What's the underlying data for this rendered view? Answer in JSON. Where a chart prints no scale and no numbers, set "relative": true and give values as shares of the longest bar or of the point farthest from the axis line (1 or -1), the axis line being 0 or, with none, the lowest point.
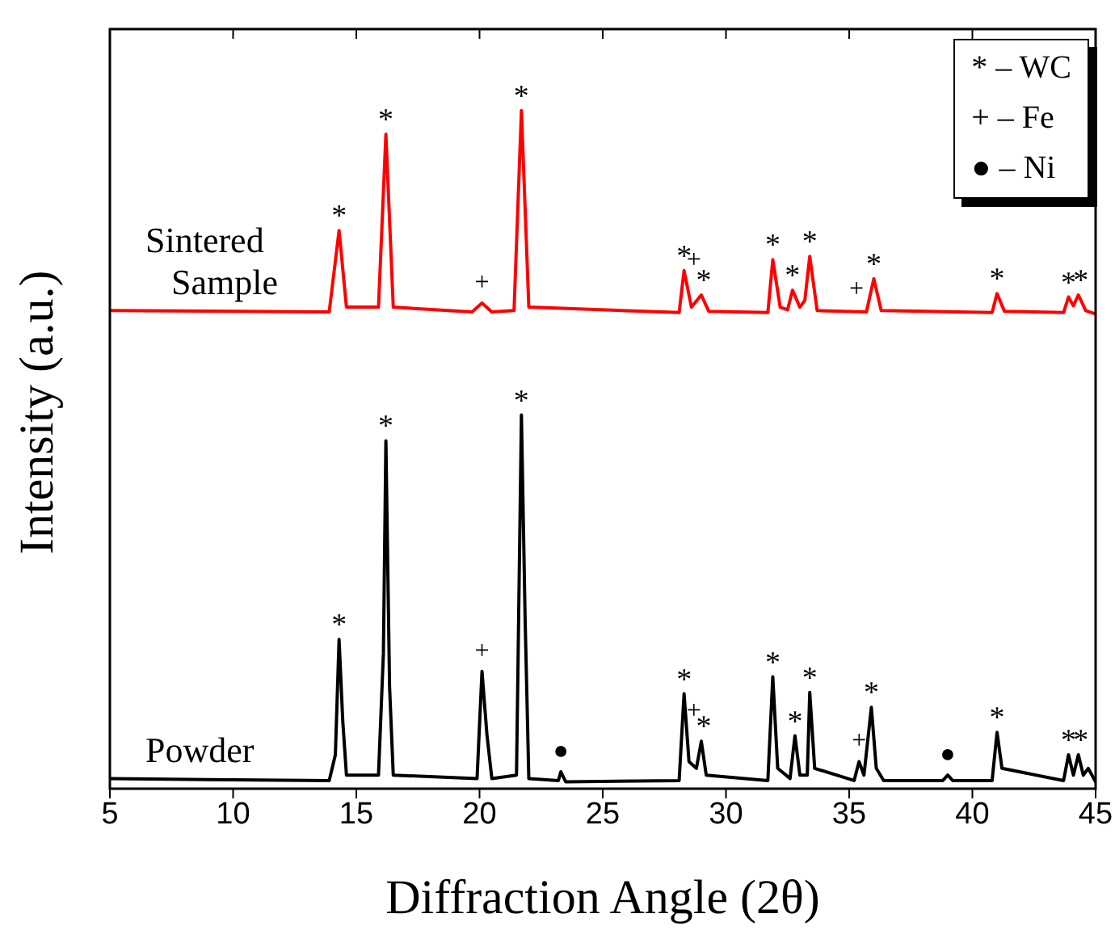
{
  "chart_data": {
    "type": "line",
    "relative": true,
    "xlabel": "Diffraction Angle (2θ)",
    "ylabel": "Intensity (a.u.)",
    "xlim": [
      5,
      45
    ],
    "xticks": [
      5,
      10,
      15,
      20,
      25,
      30,
      35,
      40,
      45
    ],
    "legend": false,
    "grid": false,
    "marker": "none",
    "line_style": "solid",
    "series": [
      {
        "name": "Sintered Sample",
        "color": "#ff0000",
        "x": [
          5,
          13.9,
          14.3,
          14.6,
          15.9,
          16.2,
          16.5,
          19.7,
          20.1,
          20.5,
          21.4,
          21.7,
          22.0,
          28.1,
          28.3,
          28.6,
          29.0,
          29.3,
          31.7,
          31.9,
          32.2,
          32.5,
          32.7,
          33.0,
          33.2,
          33.4,
          33.7,
          35.7,
          36.0,
          36.3,
          40.8,
          41.0,
          41.3,
          43.7,
          43.9,
          44.1,
          44.3,
          44.6,
          45
        ],
        "values": [
          0.705,
          0.703,
          0.823,
          0.71,
          0.71,
          0.965,
          0.71,
          0.703,
          0.716,
          0.703,
          0.705,
          1.0,
          0.71,
          0.702,
          0.764,
          0.71,
          0.728,
          0.704,
          0.702,
          0.78,
          0.71,
          0.706,
          0.735,
          0.71,
          0.72,
          0.785,
          0.705,
          0.703,
          0.752,
          0.705,
          0.702,
          0.73,
          0.704,
          0.702,
          0.725,
          0.712,
          0.728,
          0.705,
          0.7
        ]
      },
      {
        "name": "Powder",
        "color": "#000000",
        "x": [
          5,
          10,
          13.9,
          14.15,
          14.3,
          14.45,
          14.6,
          15.9,
          16.1,
          16.2,
          16.35,
          16.5,
          19.9,
          20.1,
          20.3,
          20.5,
          21.5,
          21.7,
          21.85,
          22.0,
          23.2,
          23.3,
          23.5,
          28.1,
          28.3,
          28.5,
          28.8,
          29.0,
          29.2,
          31.7,
          31.9,
          32.1,
          32.6,
          32.8,
          33.0,
          33.3,
          33.4,
          33.6,
          35.2,
          35.4,
          35.6,
          35.9,
          36.1,
          36.4,
          38.8,
          39.0,
          39.2,
          40.8,
          41.0,
          41.2,
          43.7,
          43.9,
          44.1,
          44.3,
          44.5,
          44.7,
          45
        ],
        "values": [
          0.015,
          0.013,
          0.012,
          0.05,
          0.22,
          0.1,
          0.02,
          0.02,
          0.2,
          0.513,
          0.15,
          0.02,
          0.015,
          0.173,
          0.08,
          0.015,
          0.02,
          0.551,
          0.25,
          0.015,
          0.012,
          0.025,
          0.01,
          0.012,
          0.14,
          0.04,
          0.03,
          0.07,
          0.02,
          0.012,
          0.165,
          0.03,
          0.015,
          0.078,
          0.02,
          0.02,
          0.142,
          0.03,
          0.012,
          0.04,
          0.02,
          0.12,
          0.03,
          0.012,
          0.012,
          0.02,
          0.012,
          0.012,
          0.083,
          0.03,
          0.012,
          0.05,
          0.02,
          0.05,
          0.02,
          0.03,
          0.01
        ]
      }
    ],
    "annotations": [
      "* – WC",
      "+ – Fe",
      "● – Ni",
      {
        "text": "*",
        "x": 14.3,
        "y": 0.823
      },
      {
        "text": "*",
        "x": 16.2,
        "y": 0.965
      },
      {
        "text": "+",
        "x": 20.1,
        "y": 0.716
      },
      {
        "text": "*",
        "x": 21.7,
        "y": 1.0
      },
      {
        "text": "*",
        "x": 28.3,
        "y": 0.764
      },
      {
        "text": "+",
        "x": 28.7,
        "y": 0.75
      },
      {
        "text": "*",
        "x": 29.1,
        "y": 0.728
      },
      {
        "text": "*",
        "x": 31.9,
        "y": 0.78
      },
      {
        "text": "*",
        "x": 32.7,
        "y": 0.735
      },
      {
        "text": "*",
        "x": 33.4,
        "y": 0.785
      },
      {
        "text": "+",
        "x": 35.3,
        "y": 0.706
      },
      {
        "text": "*",
        "x": 36.0,
        "y": 0.752
      },
      {
        "text": "*",
        "x": 41.0,
        "y": 0.73
      },
      {
        "text": "*",
        "x": 43.9,
        "y": 0.725
      },
      {
        "text": "*",
        "x": 44.4,
        "y": 0.728
      },
      {
        "text": "*",
        "x": 14.3,
        "y": 0.22
      },
      {
        "text": "*",
        "x": 16.2,
        "y": 0.513
      },
      {
        "text": "+",
        "x": 20.1,
        "y": 0.173
      },
      {
        "text": "*",
        "x": 21.7,
        "y": 0.551
      },
      {
        "text": "●",
        "x": 23.3,
        "y": 0.025
      },
      {
        "text": "*",
        "x": 28.3,
        "y": 0.14
      },
      {
        "text": "+",
        "x": 28.7,
        "y": 0.085
      },
      {
        "text": "*",
        "x": 29.1,
        "y": 0.07
      },
      {
        "text": "*",
        "x": 31.9,
        "y": 0.165
      },
      {
        "text": "*",
        "x": 32.8,
        "y": 0.078
      },
      {
        "text": "*",
        "x": 33.4,
        "y": 0.142
      },
      {
        "text": "+",
        "x": 35.4,
        "y": 0.04
      },
      {
        "text": "*",
        "x": 35.9,
        "y": 0.12
      },
      {
        "text": "●",
        "x": 39.0,
        "y": 0.02
      },
      {
        "text": "*",
        "x": 41.0,
        "y": 0.083
      },
      {
        "text": "*",
        "x": 43.9,
        "y": 0.05
      },
      {
        "text": "*",
        "x": 44.4,
        "y": 0.05
      }
    ]
  }
}
